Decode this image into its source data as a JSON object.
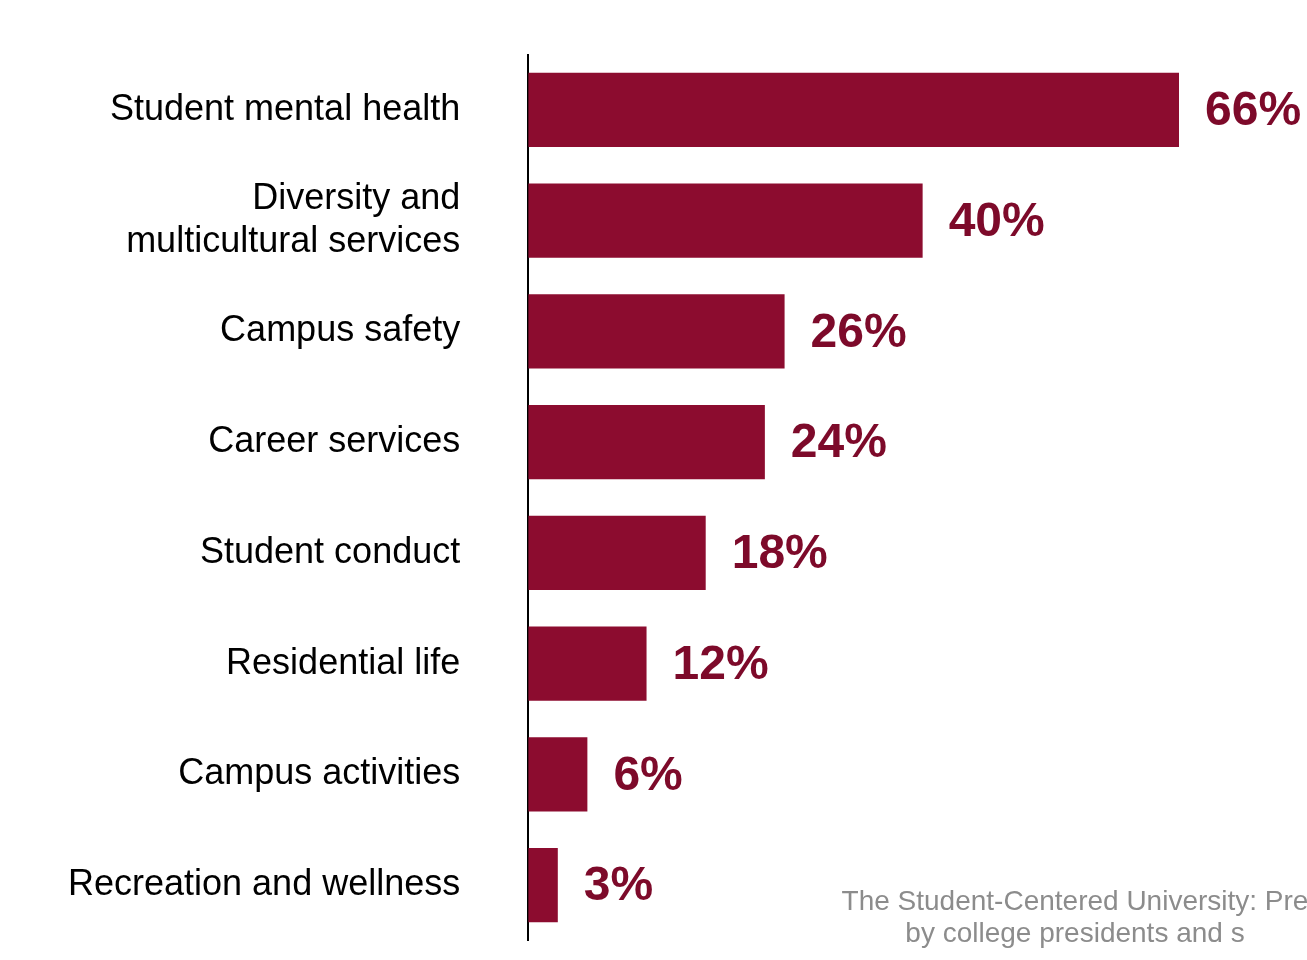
{
  "chart_data": {
    "type": "bar",
    "orientation": "horizontal",
    "categories": [
      "Student mental health",
      "Diversity and multicultural services",
      "Campus safety",
      "Career services",
      "Student conduct",
      "Residential life",
      "Campus activities",
      "Recreation and wellness"
    ],
    "values": [
      66,
      40,
      26,
      24,
      18,
      12,
      6,
      3
    ],
    "value_labels": [
      "66%",
      "40%",
      "26%",
      "24%",
      "18%",
      "12%",
      "6%",
      "3%"
    ],
    "color": "#8c0c2f",
    "grid": false,
    "legend": false,
    "tick_labels": "y",
    "annotations": [
      "The Student-Centered University: Pre",
      "by college presidents and s"
    ]
  }
}
